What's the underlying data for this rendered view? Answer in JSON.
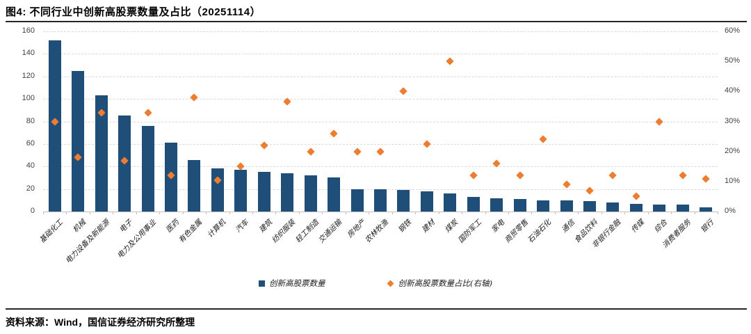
{
  "title": "图4: 不同行业中创新高股票数量及占比（20251114）",
  "source": "资料来源：Wind，国信证券经济研究所整理",
  "colors": {
    "bar": "#1F4E79",
    "diamond": "#ED7D31",
    "gridline": "#d9d9d9",
    "axis_text": "#404040",
    "rule": "#262626"
  },
  "legend": [
    {
      "label": "创新高股票数量",
      "marker": "square",
      "color": "#1F4E79"
    },
    {
      "label": "创新高股票数量占比(右轴)",
      "marker": "diamond",
      "color": "#ED7D31"
    }
  ],
  "chart_data": {
    "type": "combo-bar-scatter-dual-axis",
    "title": "图4: 不同行业中创新高股票数量及占比（20251114）",
    "grid": "horizontal dashed",
    "legend_position": "bottom-center",
    "categories": [
      "基础化工",
      "机械",
      "电力设备及新能源",
      "电子",
      "电力及公用事业",
      "医药",
      "有色金属",
      "计算机",
      "汽车",
      "建筑",
      "纺织服装",
      "轻工制造",
      "交通运输",
      "房地产",
      "农林牧渔",
      "钢铁",
      "建材",
      "煤炭",
      "国防军工",
      "家电",
      "商贸零售",
      "石油石化",
      "通信",
      "食品饮料",
      "非银行金融",
      "传媒",
      "综合",
      "消费者服务",
      "银行"
    ],
    "series": [
      {
        "name": "创新高股票数量",
        "type": "bar",
        "axis": "left",
        "color": "#1F4E79",
        "values": [
          152,
          125,
          103,
          85,
          76,
          61,
          46,
          38,
          37,
          35,
          34,
          32,
          30,
          20,
          20,
          19,
          18,
          16,
          13,
          12,
          11,
          10,
          10,
          9,
          8,
          7,
          6,
          6,
          4
        ]
      },
      {
        "name": "创新高股票数量占比(右轴)",
        "type": "scatter-diamond",
        "axis": "right",
        "color": "#ED7D31",
        "values": [
          30,
          18,
          33,
          17,
          33,
          12,
          38,
          10.5,
          15,
          22,
          36.5,
          20,
          26,
          20,
          20,
          40,
          22.5,
          50,
          12,
          16,
          12,
          24,
          9,
          7,
          12,
          5,
          30,
          12,
          11
        ]
      }
    ],
    "left_axis": {
      "min": 0,
      "max": 160,
      "step": 20,
      "ticks": [
        "0",
        "20",
        "40",
        "60",
        "80",
        "100",
        "120",
        "140",
        "160"
      ]
    },
    "right_axis": {
      "min": 0,
      "max": 60,
      "step": 10,
      "ticks": [
        "0%",
        "10%",
        "20%",
        "30%",
        "40%",
        "50%",
        "60%"
      ],
      "unit": "%"
    }
  }
}
